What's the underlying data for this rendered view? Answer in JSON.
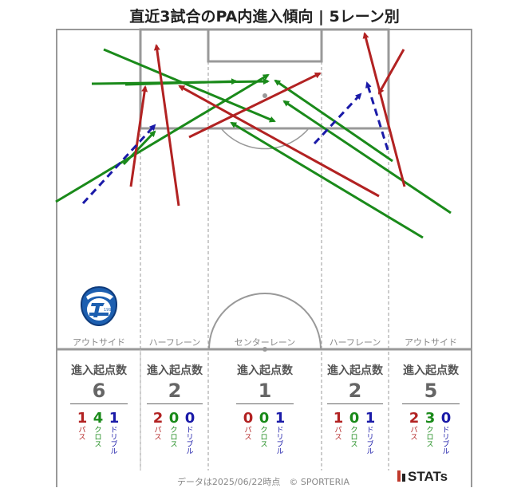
{
  "title": "直近3試合のPA内進入傾向 | 5レーン別",
  "colors": {
    "pass": "#b22222",
    "cross": "#1a8a1a",
    "dribble": "#1a1aa8"
  },
  "lanes": [
    {
      "label": "アウトサイド",
      "head": "進入起点数",
      "total": "6",
      "pass": "1",
      "cross": "4",
      "dribble": "1"
    },
    {
      "label": "ハーフレーン",
      "head": "進入起点数",
      "total": "2",
      "pass": "2",
      "cross": "0",
      "dribble": "0"
    },
    {
      "label": "センターレーン",
      "head": "進入起点数",
      "total": "1",
      "pass": "0",
      "cross": "0",
      "dribble": "1"
    },
    {
      "label": "ハーフレーン",
      "head": "進入起点数",
      "total": "2",
      "pass": "1",
      "cross": "0",
      "dribble": "1"
    },
    {
      "label": "アウトサイド",
      "head": "進入起点数",
      "total": "5",
      "pass": "2",
      "cross": "3",
      "dribble": "0"
    }
  ],
  "kind_labels": {
    "pass": "パス",
    "cross": "クロス",
    "dribble": "ドリブル"
  },
  "club_logo_text": "TRINITA 1994",
  "footer": "データは2025/06/22時点　© SPORTERIA",
  "brand": "STATs"
}
